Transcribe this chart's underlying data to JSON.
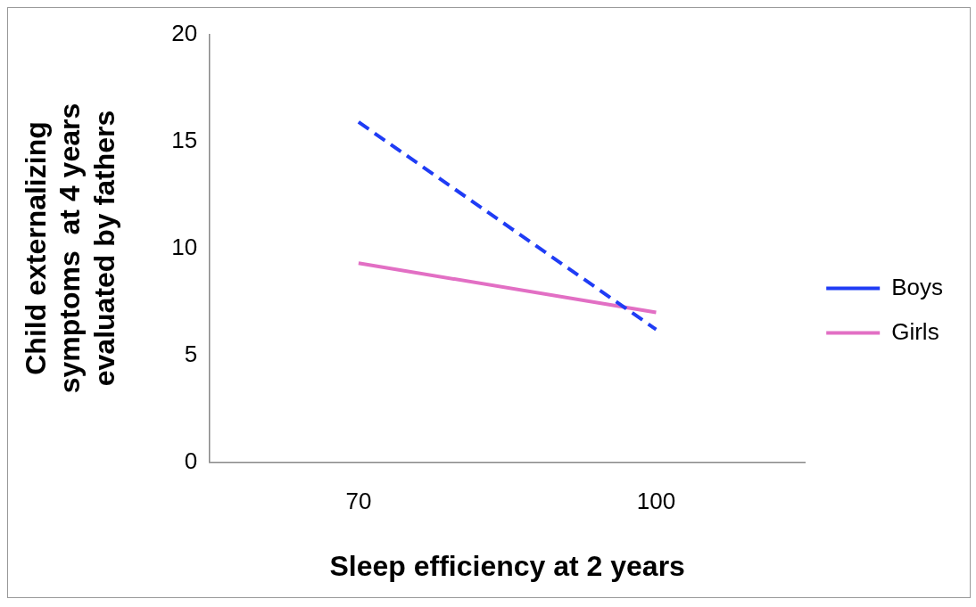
{
  "chart_data": {
    "type": "line",
    "xlabel": "Sleep efficiency at 2 years",
    "ylabel": "Child externalizing symptoms  at 4 years evaluated by fathers",
    "categories": [
      "70",
      "100"
    ],
    "series": [
      {
        "name": "Boys",
        "color": "#1f3cf5",
        "values": [
          15.9,
          6.2
        ],
        "line_style": "dashed"
      },
      {
        "name": "Girls",
        "color": "#e26fc4",
        "values": [
          9.3,
          7.0
        ],
        "line_style": "solid"
      }
    ],
    "ylim": [
      0,
      20
    ],
    "yticks": [
      0,
      5,
      10,
      15,
      20
    ],
    "grid": false,
    "legend": "right",
    "marker": "none"
  }
}
